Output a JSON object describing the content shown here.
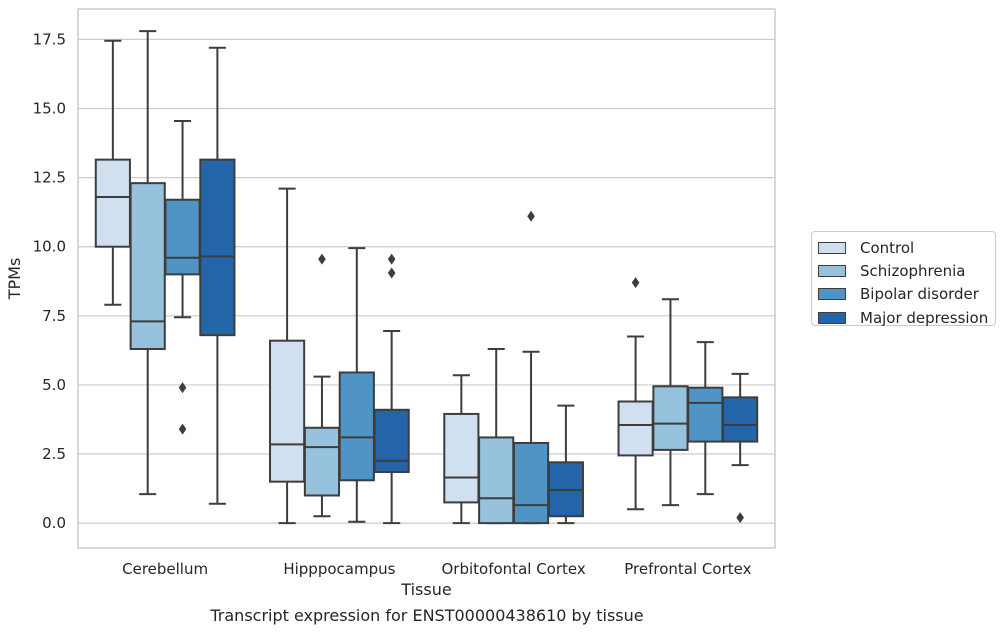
{
  "caption": "Transcript expression for ENST00000438610 by tissue",
  "colors": {
    "grid": "#cccccc",
    "frame": "#cccccc",
    "edge": "#3d3d3d",
    "Control": "#d0e0f0",
    "Schizophrenia": "#97c2de",
    "Bipolar disorder": "#4f94c5",
    "Major depression": "#2464a9"
  },
  "chart_data": {
    "type": "box",
    "xlabel": "Tissue",
    "ylabel": "TPMs",
    "ylim": [
      -0.9,
      18.6
    ],
    "yticks": [
      0.0,
      2.5,
      5.0,
      7.5,
      10.0,
      12.5,
      15.0,
      17.5
    ],
    "ytick_labels": [
      "0.0",
      "2.5",
      "5.0",
      "7.5",
      "10.0",
      "12.5",
      "15.0",
      "17.5"
    ],
    "grid": true,
    "legend_position": "right",
    "categories": [
      "Cerebellum",
      "Hipppocampus",
      "Orbitofontal Cortex",
      "Prefrontal Cortex"
    ],
    "series": [
      {
        "name": "Control",
        "boxes": [
          {
            "whislo": 7.9,
            "q1": 10.0,
            "med": 11.8,
            "q3": 13.15,
            "whishi": 17.45,
            "fliers": []
          },
          {
            "whislo": 0.0,
            "q1": 1.5,
            "med": 2.85,
            "q3": 6.6,
            "whishi": 12.1,
            "fliers": []
          },
          {
            "whislo": 0.0,
            "q1": 0.75,
            "med": 1.65,
            "q3": 3.95,
            "whishi": 5.35,
            "fliers": []
          },
          {
            "whislo": 0.5,
            "q1": 2.45,
            "med": 3.55,
            "q3": 4.4,
            "whishi": 6.75,
            "fliers": [
              8.7
            ]
          }
        ]
      },
      {
        "name": "Schizophrenia",
        "boxes": [
          {
            "whislo": 1.05,
            "q1": 6.3,
            "med": 7.3,
            "q3": 12.3,
            "whishi": 17.8,
            "fliers": []
          },
          {
            "whislo": 0.25,
            "q1": 1.0,
            "med": 2.75,
            "q3": 3.45,
            "whishi": 5.3,
            "fliers": [
              9.55
            ]
          },
          {
            "whislo": 0.0,
            "q1": 0.0,
            "med": 0.9,
            "q3": 3.1,
            "whishi": 6.3,
            "fliers": []
          },
          {
            "whislo": 0.65,
            "q1": 2.65,
            "med": 3.6,
            "q3": 4.95,
            "whishi": 8.1,
            "fliers": []
          }
        ]
      },
      {
        "name": "Bipolar disorder",
        "boxes": [
          {
            "whislo": 7.45,
            "q1": 9.0,
            "med": 9.6,
            "q3": 11.7,
            "whishi": 14.55,
            "fliers": [
              4.9,
              3.4
            ]
          },
          {
            "whislo": 0.05,
            "q1": 1.55,
            "med": 3.1,
            "q3": 5.45,
            "whishi": 9.95,
            "fliers": []
          },
          {
            "whislo": 0.0,
            "q1": 0.0,
            "med": 0.65,
            "q3": 2.9,
            "whishi": 6.2,
            "fliers": [
              11.1
            ]
          },
          {
            "whislo": 1.05,
            "q1": 2.95,
            "med": 4.35,
            "q3": 4.9,
            "whishi": 6.55,
            "fliers": []
          }
        ]
      },
      {
        "name": "Major depression",
        "boxes": [
          {
            "whislo": 0.7,
            "q1": 6.8,
            "med": 9.65,
            "q3": 13.15,
            "whishi": 17.2,
            "fliers": []
          },
          {
            "whislo": 0.0,
            "q1": 1.85,
            "med": 2.25,
            "q3": 4.1,
            "whishi": 6.95,
            "fliers": [
              9.55,
              9.05
            ]
          },
          {
            "whislo": 0.0,
            "q1": 0.25,
            "med": 1.2,
            "q3": 2.2,
            "whishi": 4.25,
            "fliers": []
          },
          {
            "whislo": 2.1,
            "q1": 2.95,
            "med": 3.55,
            "q3": 4.55,
            "whishi": 5.4,
            "fliers": [
              0.2
            ]
          }
        ]
      }
    ]
  }
}
